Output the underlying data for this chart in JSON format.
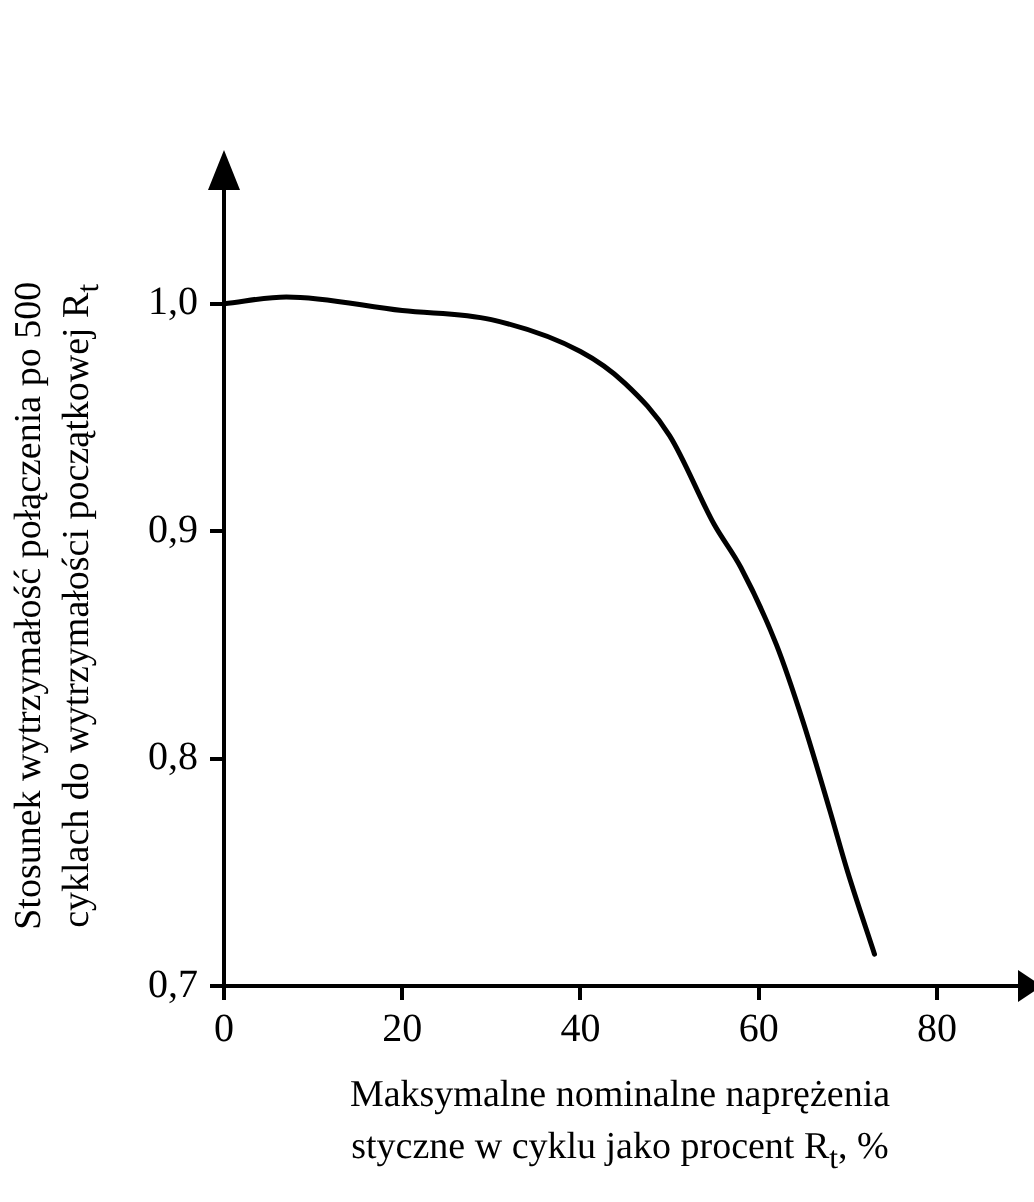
{
  "chart_data": {
    "type": "line",
    "xlabel": "Maksymalne nominalne naprężenia styczne w cyklu jako procent  R$_{t}$, %",
    "ylabel": "Stosunek wytrzymałość połączenia po 500 cyklach do wytrzymałości początkowej R$_{t}$",
    "xlim": [
      0,
      90
    ],
    "xticks": [
      0,
      20,
      40,
      60,
      80
    ],
    "ylim": [
      0.7,
      1.05
    ],
    "yticks": [
      {
        "value": 0.7,
        "label": "0,7"
      },
      {
        "value": 0.8,
        "label": "0,8"
      },
      {
        "value": 0.9,
        "label": "0,9"
      },
      {
        "value": 1.0,
        "label": "1,0"
      }
    ],
    "grid": false,
    "legend": false,
    "marker": "none",
    "line_style": "solid",
    "series": [
      {
        "color": "#000000",
        "x": [
          0,
          7,
          20,
          30,
          40,
          45,
          50,
          55,
          58,
          62,
          65,
          68,
          70,
          73
        ],
        "values": [
          1.0,
          1.003,
          0.997,
          0.993,
          0.979,
          0.965,
          0.942,
          0.903,
          0.884,
          0.85,
          0.816,
          0.777,
          0.75,
          0.714
        ]
      }
    ]
  }
}
